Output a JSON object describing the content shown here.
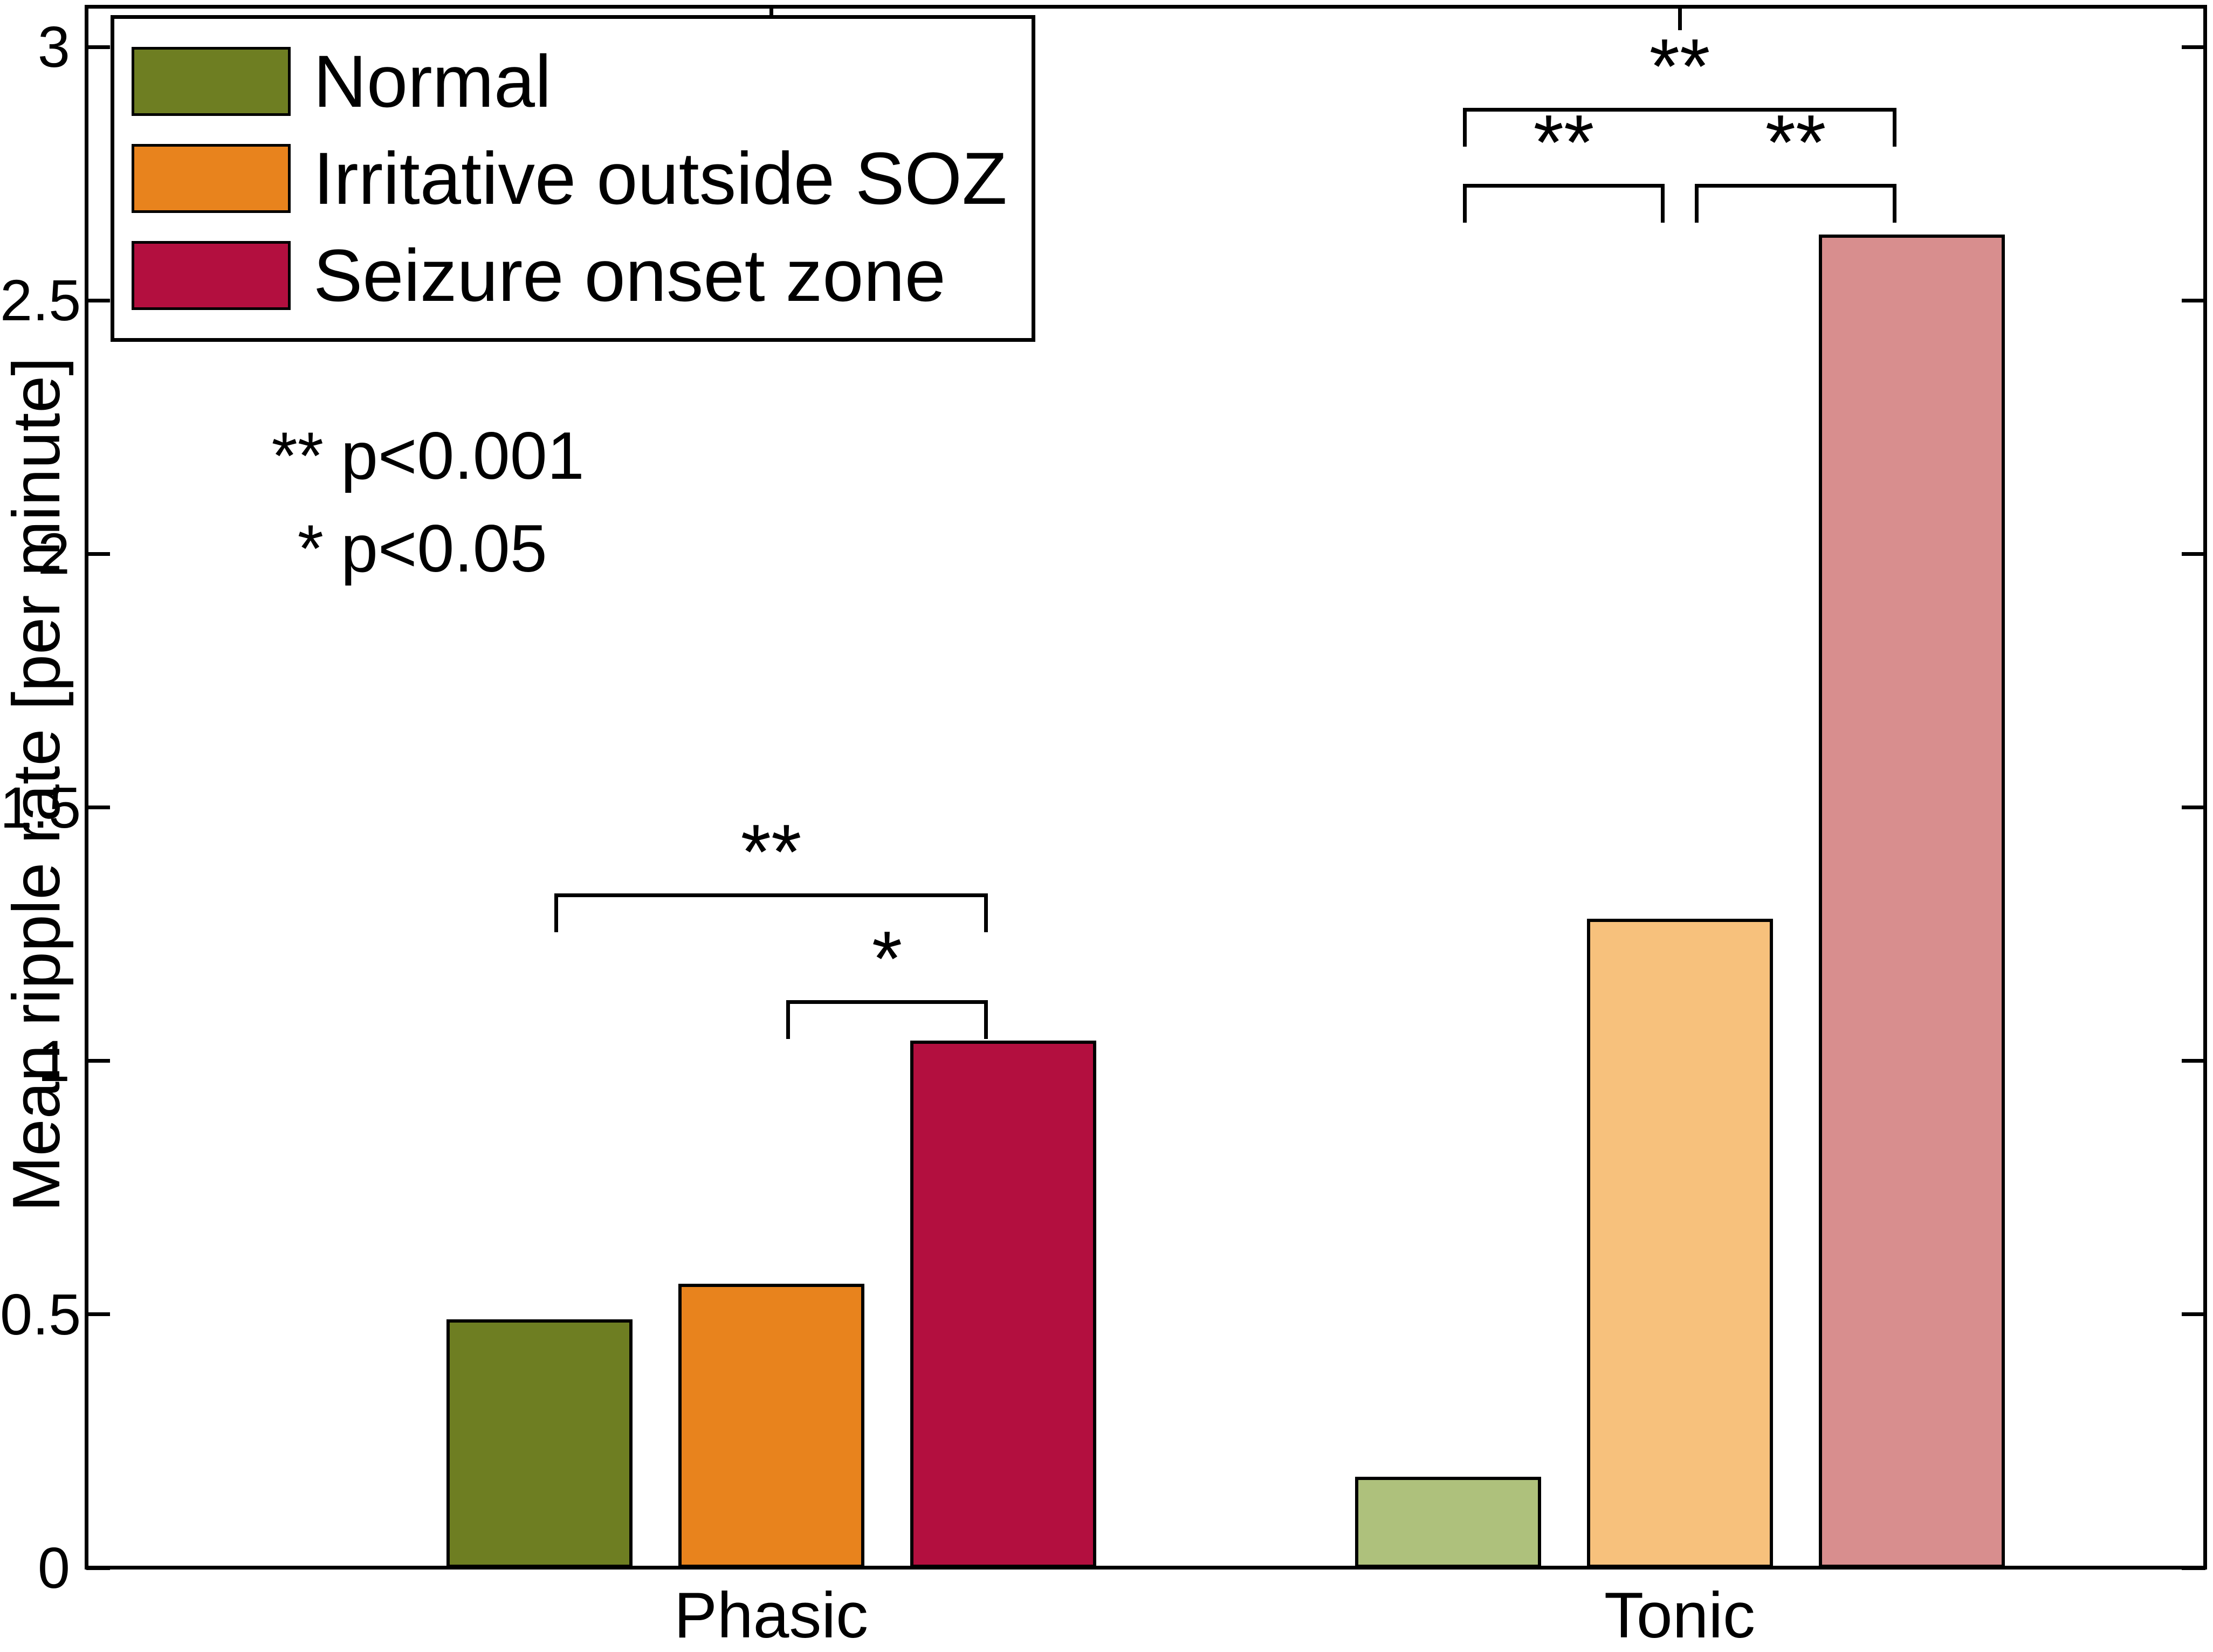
{
  "chart_data": {
    "type": "bar",
    "title": "",
    "xlabel": "",
    "ylabel": "Mean ripple rate [per minute]",
    "ylim": [
      0,
      3
    ],
    "grid": false,
    "background": "#ffffff",
    "axis_color": "#000000",
    "ytick_values": [
      0,
      0.5,
      1,
      1.5,
      2,
      2.5,
      3
    ],
    "ytick_labels": [
      "0",
      "0.5",
      "1",
      "1.5",
      "2",
      "2.5",
      "3"
    ],
    "categories": [
      "Phasic",
      "Tonic"
    ],
    "series": [
      {
        "name": "Normal",
        "values": [
          0.49,
          0.18
        ],
        "colors": [
          "#6e7e22",
          "#aec17c"
        ]
      },
      {
        "name": "Irritative outside SOZ",
        "values": [
          0.56,
          1.28
        ],
        "colors": [
          "#e8831d",
          "#f7c17c"
        ]
      },
      {
        "name": "Seizure onset zone",
        "values": [
          1.04,
          2.63
        ],
        "colors": [
          "#b30f3f",
          "#d88e8e"
        ]
      }
    ],
    "legend": {
      "position": "top-left",
      "entries": [
        "Normal",
        "Irritative outside SOZ",
        "Seizure onset zone"
      ]
    },
    "p_notes": [
      {
        "marker": "**",
        "text": "p<0.001"
      },
      {
        "marker": "*",
        "text": "p<0.05"
      }
    ],
    "significance_brackets": [
      {
        "category": "Phasic",
        "category_index": 0,
        "from_bar": 0,
        "to_bar": 2,
        "label": "**",
        "height": 1.33
      },
      {
        "category": "Phasic",
        "category_index": 0,
        "from_bar": 1,
        "to_bar": 2,
        "label": "*",
        "height": 1.12
      },
      {
        "category": "Tonic",
        "category_index": 1,
        "from_bar": 0,
        "to_bar": 2,
        "label": "**",
        "height": 2.88
      },
      {
        "category": "Tonic",
        "category_index": 1,
        "from_bar": 0,
        "to_bar": 1,
        "label": "**",
        "height": 2.73
      },
      {
        "category": "Tonic",
        "category_index": 1,
        "from_bar": 1,
        "to_bar": 2,
        "label": "**",
        "height": 2.73
      }
    ]
  }
}
